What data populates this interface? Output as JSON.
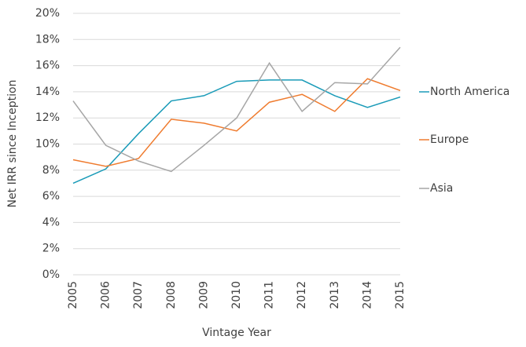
{
  "chart_data": {
    "type": "line",
    "y_label": "Net IRR since Inception",
    "x_label": "Vintage Year",
    "categories": [
      "2005",
      "2006",
      "2007",
      "2008",
      "2009",
      "2010",
      "2011",
      "2012",
      "2013",
      "2014",
      "2015"
    ],
    "series": [
      {
        "name": "North America",
        "color": "#1a9bb8",
        "values": [
          7.0,
          8.1,
          10.8,
          13.3,
          13.7,
          14.8,
          14.9,
          14.9,
          13.7,
          12.8,
          13.6
        ]
      },
      {
        "name": "Europe",
        "color": "#ef7b2e",
        "values": [
          8.8,
          8.3,
          8.9,
          11.9,
          11.6,
          11.0,
          13.2,
          13.8,
          12.5,
          15.0,
          14.1
        ]
      },
      {
        "name": "Asia",
        "color": "#a6a6a6",
        "values": [
          13.3,
          9.9,
          8.7,
          7.9,
          9.9,
          12.0,
          16.2,
          12.5,
          14.7,
          14.6,
          17.4
        ]
      }
    ],
    "ylim": [
      0,
      20
    ],
    "yticks": [
      {
        "value": 0,
        "label": "0%"
      },
      {
        "value": 2,
        "label": "2%"
      },
      {
        "value": 4,
        "label": "4%"
      },
      {
        "value": 6,
        "label": "6%"
      },
      {
        "value": 8,
        "label": "8%"
      },
      {
        "value": 10,
        "label": "10%"
      },
      {
        "value": 12,
        "label": "12%"
      },
      {
        "value": 14,
        "label": "14%"
      },
      {
        "value": 16,
        "label": "16%"
      },
      {
        "value": 18,
        "label": "18%"
      },
      {
        "value": 20,
        "label": "20%"
      }
    ],
    "grid": true,
    "legend": "right"
  }
}
